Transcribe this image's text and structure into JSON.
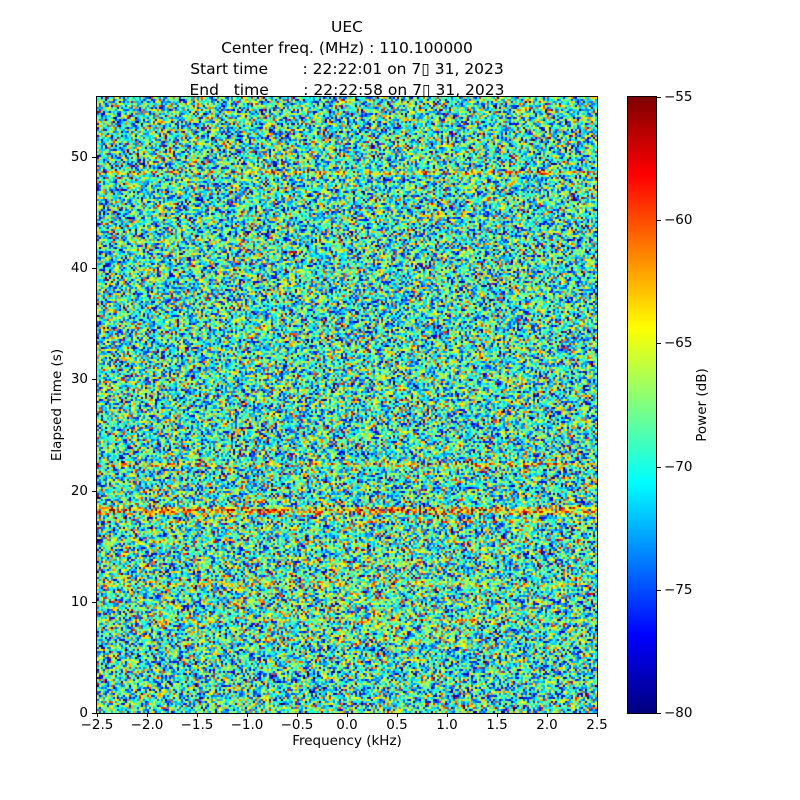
{
  "figure": {
    "title_lines": [
      "UEC",
      "Center freq. (MHz) : 110.100000",
      "Start time       : 22:22:01 on 7▯ 31, 2023",
      "End   time       : 22:22:58 on 7▯ 31, 2023"
    ],
    "background_color": "#ffffff",
    "text_color": "#000000"
  },
  "chart_data": {
    "type": "heatmap",
    "subtype": "spectrogram-waterfall",
    "title": "UEC",
    "center_freq_mhz": "110.100000",
    "start_time": "22:22:01 on 7▯ 31, 2023",
    "end_time": "22:22:58 on 7▯ 31, 2023",
    "xlabel": "Frequency (kHz)",
    "ylabel": "Elapsed Time (s)",
    "xlim": [
      -2.5,
      2.5
    ],
    "ylim": [
      0,
      55.4
    ],
    "grid": false,
    "x_ticks": {
      "values": [
        -2.5,
        -2.0,
        -1.5,
        -1.0,
        -0.5,
        0.0,
        0.5,
        1.0,
        1.5,
        2.0,
        2.5
      ],
      "labels": [
        "−2.5",
        "−2.0",
        "−1.5",
        "−1.0",
        "−0.5",
        "0.0",
        "0.5",
        "1.0",
        "1.5",
        "2.0",
        "2.5"
      ]
    },
    "y_ticks": {
      "values": [
        0,
        10,
        20,
        30,
        40,
        50
      ],
      "labels": [
        "0",
        "10",
        "20",
        "30",
        "40",
        "50"
      ]
    },
    "colorbar": {
      "label": "Power (dB)",
      "min": -80,
      "max": -55,
      "colormap": "jet",
      "ticks": {
        "values": [
          -55,
          -60,
          -65,
          -70,
          -75,
          -80
        ],
        "labels": [
          "−55",
          "−60",
          "−65",
          "−70",
          "−75",
          "−80"
        ]
      }
    },
    "noise": {
      "mean_db": -69.5,
      "std_db": 5.0,
      "seed": 1337,
      "cols": 250,
      "rows": 308,
      "clip": [
        -80,
        -55
      ]
    },
    "stripes": [
      {
        "time_s": 48.6,
        "boost_db": 6.5,
        "halfwidth_s": 0.22
      },
      {
        "time_s": 22.3,
        "boost_db": 6.5,
        "halfwidth_s": 0.22
      },
      {
        "time_s": 18.2,
        "boost_db": 9.0,
        "halfwidth_s": 0.32
      },
      {
        "time_s": 17.2,
        "boost_db": 3.5,
        "halfwidth_s": 0.18
      },
      {
        "time_s": 15.4,
        "boost_db": 2.5,
        "halfwidth_s": 0.18
      },
      {
        "time_s": 11.6,
        "boost_db": 3.0,
        "halfwidth_s": 0.22
      },
      {
        "time_s": 8.3,
        "boost_db": 2.5,
        "halfwidth_s": 0.18
      }
    ],
    "center_hotspot": {
      "t_range": [
        6,
        14
      ],
      "freq_sigma_khz": 1.0,
      "amp_db": 2.0
    }
  }
}
